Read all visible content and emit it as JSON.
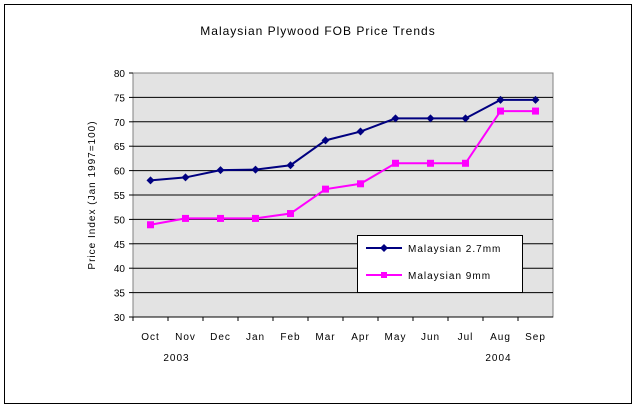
{
  "chart_data": {
    "type": "line",
    "title": "Malaysian Plywood FOB Price Trends",
    "xlabel": "",
    "ylabel": "Price Index (Jan 1997=100)",
    "ylim": [
      30,
      80
    ],
    "yticks": [
      "30",
      "35",
      "40",
      "45",
      "50",
      "55",
      "60",
      "65",
      "70",
      "75",
      "80"
    ],
    "categories": [
      "Oct",
      "Nov",
      "Dec",
      "Jan",
      "Feb",
      "Mar",
      "Apr",
      "May",
      "Jun",
      "Jul",
      "Aug",
      "Sep"
    ],
    "year_labels": [
      {
        "label": "2003",
        "category": "Oct"
      },
      {
        "label": "2004",
        "category": "Aug"
      }
    ],
    "grid": true,
    "legend_position": "bottom-right inside",
    "series": [
      {
        "name": "Malaysian 2.7mm",
        "color": "#000080",
        "marker": "diamond",
        "values": [
          58.0,
          58.6,
          60.1,
          60.2,
          61.1,
          66.2,
          68.0,
          70.7,
          70.7,
          70.7,
          74.5,
          74.5
        ]
      },
      {
        "name": "Malaysian 9mm",
        "color": "#FF00FF",
        "marker": "square",
        "values": [
          48.9,
          50.2,
          50.2,
          50.2,
          51.2,
          56.2,
          57.3,
          61.5,
          61.5,
          61.5,
          72.2,
          72.2
        ]
      }
    ]
  }
}
